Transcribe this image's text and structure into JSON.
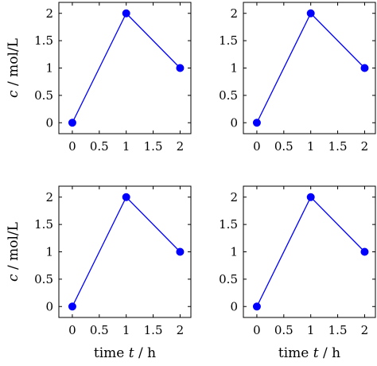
{
  "chart_data": [
    {
      "type": "line",
      "x": [
        0,
        1,
        2
      ],
      "series": [
        {
          "values": [
            0,
            2,
            1
          ]
        }
      ],
      "xlim": [
        -0.25,
        2.2
      ],
      "ylim": [
        -0.2,
        2.2
      ],
      "xticks": [
        0,
        0.5,
        1,
        1.5,
        2
      ],
      "yticks": [
        0,
        0.5,
        1,
        1.5,
        2
      ],
      "xtick_labels": [
        "0",
        "0.5",
        "1",
        "1.5",
        "2"
      ],
      "ytick_labels": [
        "0",
        "0.5",
        "1",
        "1.5",
        "2"
      ],
      "ylabel": {
        "var": "c",
        "rest": " / mol/L"
      },
      "xlabel": null,
      "grid": false,
      "color": "#0000ff"
    },
    {
      "type": "line",
      "x": [
        0,
        1,
        2
      ],
      "series": [
        {
          "values": [
            0,
            2,
            1
          ]
        }
      ],
      "xlim": [
        -0.25,
        2.2
      ],
      "ylim": [
        -0.2,
        2.2
      ],
      "xticks": [
        0,
        0.5,
        1,
        1.5,
        2
      ],
      "yticks": [
        0,
        0.5,
        1,
        1.5,
        2
      ],
      "xtick_labels": [
        "0",
        "0.5",
        "1",
        "1.5",
        "2"
      ],
      "ytick_labels": [
        "0",
        "0.5",
        "1",
        "1.5",
        "2"
      ],
      "ylabel": null,
      "xlabel": null,
      "grid": false,
      "color": "#0000ff"
    },
    {
      "type": "line",
      "x": [
        0,
        1,
        2
      ],
      "series": [
        {
          "values": [
            0,
            2,
            1
          ]
        }
      ],
      "xlim": [
        -0.25,
        2.2
      ],
      "ylim": [
        -0.2,
        2.2
      ],
      "xticks": [
        0,
        0.5,
        1,
        1.5,
        2
      ],
      "yticks": [
        0,
        0.5,
        1,
        1.5,
        2
      ],
      "xtick_labels": [
        "0",
        "0.5",
        "1",
        "1.5",
        "2"
      ],
      "ytick_labels": [
        "0",
        "0.5",
        "1",
        "1.5",
        "2"
      ],
      "ylabel": {
        "var": "c",
        "rest": " / mol/L"
      },
      "xlabel": {
        "pre": "time ",
        "var": "t",
        "rest": " / h"
      },
      "grid": false,
      "color": "#0000ff"
    },
    {
      "type": "line",
      "x": [
        0,
        1,
        2
      ],
      "series": [
        {
          "values": [
            0,
            2,
            1
          ]
        }
      ],
      "xlim": [
        -0.25,
        2.2
      ],
      "ylim": [
        -0.2,
        2.2
      ],
      "xticks": [
        0,
        0.5,
        1,
        1.5,
        2
      ],
      "yticks": [
        0,
        0.5,
        1,
        1.5,
        2
      ],
      "xtick_labels": [
        "0",
        "0.5",
        "1",
        "1.5",
        "2"
      ],
      "ytick_labels": [
        "0",
        "0.5",
        "1",
        "1.5",
        "2"
      ],
      "ylabel": null,
      "xlabel": {
        "pre": "time ",
        "var": "t",
        "rest": " / h"
      },
      "grid": false,
      "color": "#0000ff"
    }
  ]
}
